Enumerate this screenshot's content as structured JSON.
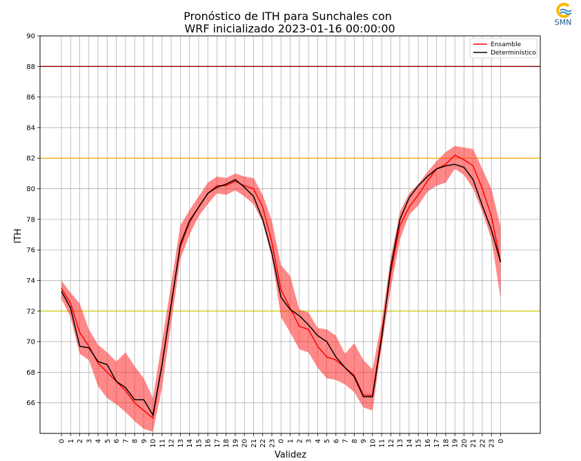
{
  "chart_data": {
    "type": "line",
    "title_line1": "Pronóstico de ITH para Sunchales con",
    "title_line2": "WRF inicializado 2023-01-16 00:00:00",
    "xlabel": "Validez",
    "ylabel": "ITH",
    "ylim": [
      64,
      90
    ],
    "yticks": [
      66,
      68,
      70,
      72,
      74,
      76,
      78,
      80,
      82,
      84,
      86,
      88,
      90
    ],
    "grid": true,
    "legend_position": "top-right",
    "x_labels": [
      "0",
      "1",
      "2",
      "3",
      "4",
      "5",
      "6",
      "7",
      "8",
      "9",
      "10",
      "11",
      "12",
      "13",
      "14",
      "15",
      "16",
      "17",
      "18",
      "19",
      "20",
      "21",
      "22",
      "23",
      "0",
      "1",
      "2",
      "3",
      "4",
      "5",
      "6",
      "7",
      "8",
      "9",
      "10",
      "11",
      "12",
      "13",
      "14",
      "15",
      "16",
      "17",
      "18",
      "19",
      "20",
      "21",
      "22",
      "23",
      "0"
    ],
    "thresholds": [
      {
        "value": 88,
        "color": "#8b0000"
      },
      {
        "value": 82,
        "color": "#ffa500"
      },
      {
        "value": 72,
        "color": "#cccc00"
      }
    ],
    "series": [
      {
        "name": "Ensamble",
        "color": "#ff0000",
        "values": [
          73.5,
          72.5,
          70.6,
          69.7,
          68.6,
          68.0,
          67.4,
          66.8,
          66.0,
          65.5,
          65.0,
          68.5,
          72.5,
          76.2,
          77.8,
          78.8,
          79.7,
          80.2,
          80.2,
          80.5,
          80.2,
          80.0,
          78.8,
          76.5,
          73.4,
          72.2,
          71.0,
          70.8,
          69.7,
          69.0,
          68.8,
          68.3,
          67.8,
          66.5,
          66.5,
          70.5,
          74.5,
          77.6,
          78.8,
          79.6,
          80.5,
          81.3,
          81.6,
          82.2,
          81.9,
          81.5,
          80.0,
          78.2,
          75.2
        ],
        "upper": [
          74.0,
          73.2,
          72.5,
          70.8,
          69.8,
          69.3,
          68.7,
          69.3,
          68.4,
          67.6,
          66.3,
          70.0,
          73.8,
          77.6,
          78.6,
          79.5,
          80.4,
          80.8,
          80.7,
          81.0,
          80.8,
          80.7,
          79.6,
          77.9,
          75.0,
          74.3,
          72.1,
          71.9,
          70.9,
          70.8,
          70.4,
          69.2,
          69.9,
          68.8,
          68.2,
          71.3,
          75.5,
          78.5,
          79.7,
          80.3,
          81.1,
          81.8,
          82.4,
          82.8,
          82.7,
          82.6,
          81.3,
          80.0,
          77.5
        ],
        "lower": [
          72.8,
          71.6,
          69.2,
          68.8,
          67.1,
          66.3,
          65.9,
          65.4,
          64.8,
          64.3,
          64.1,
          67.0,
          71.2,
          75.4,
          77.0,
          78.2,
          79.0,
          79.7,
          79.6,
          79.9,
          79.5,
          79.0,
          77.8,
          75.5,
          71.6,
          70.6,
          69.5,
          69.3,
          68.3,
          67.6,
          67.5,
          67.2,
          66.7,
          65.7,
          65.5,
          69.7,
          73.5,
          76.7,
          78.3,
          78.9,
          79.8,
          80.2,
          80.4,
          81.3,
          80.9,
          80.0,
          78.5,
          76.7,
          72.8
        ]
      },
      {
        "name": "Determinístico",
        "color": "#000000",
        "values": [
          73.3,
          72.2,
          69.7,
          69.6,
          68.7,
          68.5,
          67.4,
          67.0,
          66.2,
          66.2,
          65.2,
          68.5,
          72.4,
          76.4,
          77.9,
          78.8,
          79.7,
          80.1,
          80.3,
          80.6,
          80.1,
          79.5,
          78.0,
          75.8,
          72.9,
          72.1,
          71.7,
          71.1,
          70.4,
          70.0,
          69.0,
          68.3,
          67.7,
          66.4,
          66.4,
          70.2,
          74.9,
          78.0,
          79.4,
          80.2,
          80.8,
          81.3,
          81.5,
          81.6,
          81.4,
          80.6,
          78.9,
          77.3,
          75.2
        ]
      }
    ]
  },
  "logo": {
    "text": "SMN",
    "color_primary": "#f5b800",
    "color_secondary": "#1f7ec1"
  }
}
